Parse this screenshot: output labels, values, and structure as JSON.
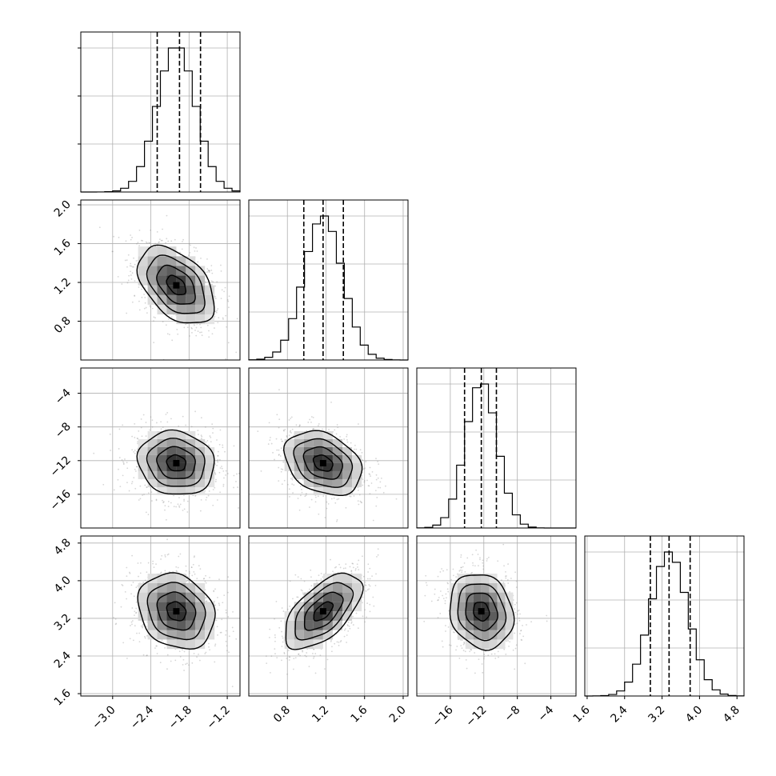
{
  "chart_data": {
    "type": "corner",
    "style": {
      "hist_color": "#000000",
      "quantile_color": "#000000",
      "grid_color": "#b0b0b0",
      "scatter_color": "#8a8a8a",
      "density_max_color": "#000000",
      "grid": true
    },
    "parameters": [
      {
        "range": [
          -3.5,
          -1.0
        ],
        "ticks": [
          -3.0,
          -2.4,
          -1.8,
          -1.2
        ],
        "tick_labels": [
          "−3.0",
          "−2.4",
          "−1.8",
          "−1.2"
        ],
        "hist_mean": -2.0,
        "hist_sd": 0.3,
        "quantiles": [
          -2.3,
          -1.95,
          -1.62
        ]
      },
      {
        "range": [
          0.4,
          2.05
        ],
        "ticks": [
          0.8,
          1.2,
          1.6,
          2.0
        ],
        "tick_labels": [
          "0.8",
          "1.2",
          "1.6",
          "2.0"
        ],
        "hist_mean": 1.17,
        "hist_sd": 0.2,
        "quantiles": [
          0.97,
          1.17,
          1.38
        ]
      },
      {
        "range": [
          -20.0,
          -1.0
        ],
        "ticks": [
          -16,
          -12,
          -8,
          -4
        ],
        "tick_labels": [
          "−16",
          "−12",
          "−8",
          "−4"
        ],
        "hist_mean": -12.3,
        "hist_sd": 1.9,
        "quantiles": [
          -14.3,
          -12.3,
          -10.5
        ]
      },
      {
        "range": [
          1.55,
          4.95
        ],
        "ticks": [
          1.6,
          2.4,
          3.2,
          4.0,
          4.8
        ],
        "tick_labels": [
          "1.6",
          "2.4",
          "3.2",
          "4.0",
          "4.8"
        ],
        "hist_mean": 3.35,
        "hist_sd": 0.4,
        "quantiles": [
          2.95,
          3.35,
          3.8
        ]
      }
    ],
    "y_tick_labels": [
      null,
      [
        "0.8",
        "1.2",
        "1.6",
        "2.0"
      ],
      [
        "−16",
        "−12",
        "−8",
        "−4"
      ],
      [
        "1.6",
        "2.4",
        "3.2",
        "4.0",
        "4.8"
      ]
    ],
    "correlations": [
      {
        "pair": [
          0,
          1
        ],
        "rho": -0.45
      },
      {
        "pair": [
          0,
          2
        ],
        "rho": -0.1
      },
      {
        "pair": [
          1,
          2
        ],
        "rho": -0.3
      },
      {
        "pair": [
          0,
          3
        ],
        "rho": -0.2
      },
      {
        "pair": [
          1,
          3
        ],
        "rho": 0.6
      },
      {
        "pair": [
          2,
          3
        ],
        "rho": -0.15
      }
    ]
  }
}
